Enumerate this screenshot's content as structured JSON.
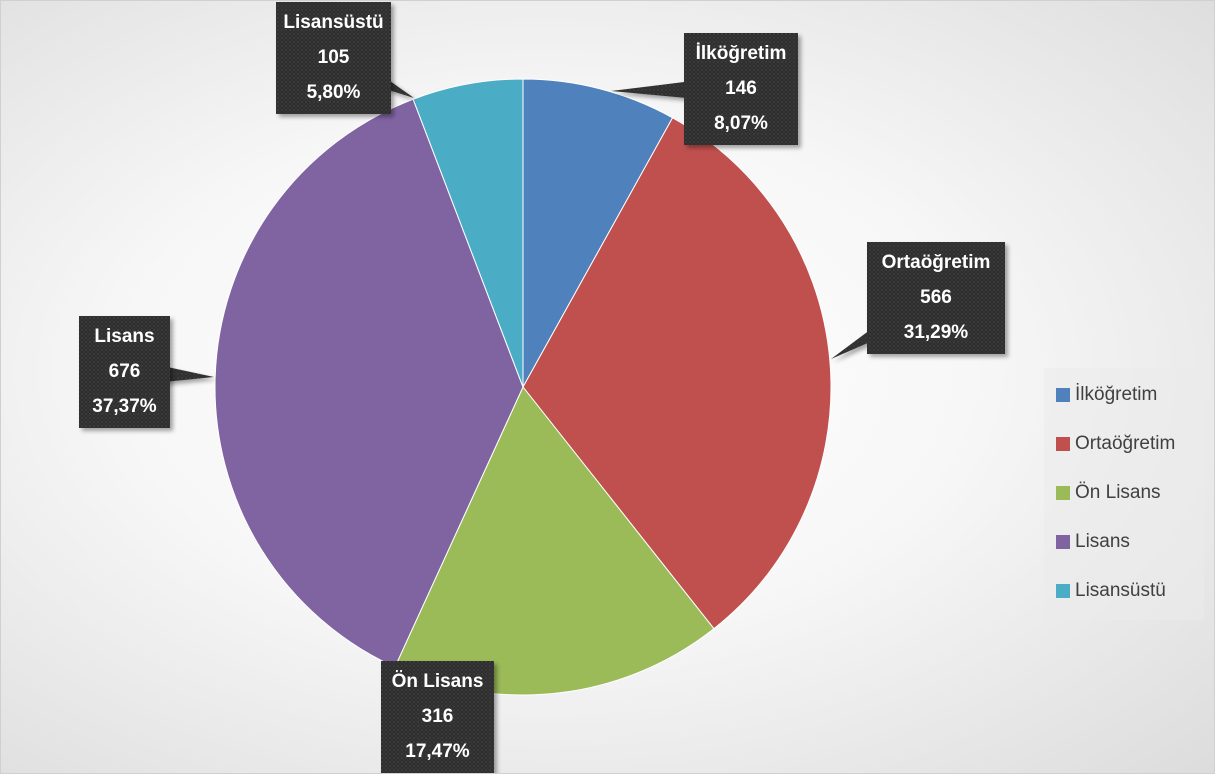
{
  "chart_data": {
    "type": "pie",
    "categories": [
      "İlköğretim",
      "Ortaöğretim",
      "Ön Lisans",
      "Lisans",
      "Lisansüstü"
    ],
    "values": [
      146,
      566,
      316,
      676,
      105
    ],
    "percent_labels": [
      "8,07%",
      "31,29%",
      "17,47%",
      "37,37%",
      "5,80%"
    ],
    "colors": [
      "#4F81BD",
      "#C0504D",
      "#9BBB59",
      "#8064A2",
      "#4BACC6"
    ],
    "legend_position": "right",
    "start_angle": "top, clockwise"
  }
}
